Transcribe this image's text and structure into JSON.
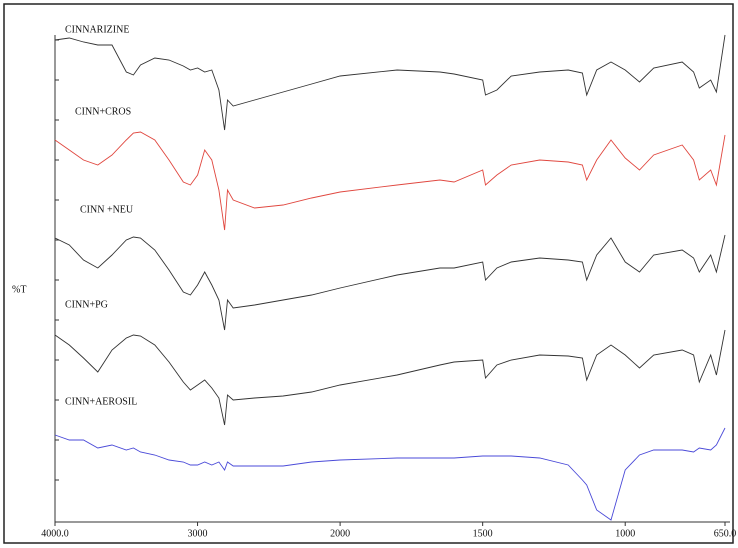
{
  "chart_data": {
    "type": "line",
    "ylabel": "%T",
    "x": [
      4000,
      3900,
      3800,
      3700,
      3600,
      3500,
      3450,
      3400,
      3300,
      3200,
      3100,
      3050,
      3000,
      2950,
      2900,
      2850,
      2810,
      2790,
      2750,
      2600,
      2400,
      2200,
      2000,
      1800,
      1650,
      1600,
      1500,
      1490,
      1450,
      1400,
      1300,
      1200,
      1150,
      1135,
      1100,
      1050,
      1000,
      950,
      900,
      800,
      760,
      740,
      700,
      680,
      650
    ],
    "xlim": [
      4000,
      650
    ],
    "x_scale_break": 2000,
    "xticks": [
      {
        "value": 4000,
        "label": "4000.0"
      },
      3000,
      2000,
      1500,
      1000,
      {
        "value": 650,
        "label": "650.0"
      }
    ],
    "ylim": [
      0,
      510
    ],
    "series": [
      {
        "name": "CINNARIZINE",
        "color": "#333333",
        "values": [
          480,
          482,
          478,
          475,
          475,
          448,
          445,
          455,
          462,
          460,
          454,
          450,
          452,
          448,
          450,
          430,
          390,
          420,
          414,
          420,
          428,
          436,
          444,
          450,
          448,
          446,
          440,
          425,
          430,
          444,
          448,
          450,
          447,
          425,
          450,
          458,
          450,
          438,
          452,
          458,
          448,
          432,
          440,
          428,
          485
        ]
      },
      {
        "name": "CINN+CROS",
        "color": "#e0473f",
        "values": [
          380,
          370,
          360,
          355,
          365,
          380,
          387,
          388,
          380,
          360,
          338,
          335,
          345,
          370,
          360,
          330,
          290,
          330,
          320,
          312,
          315,
          322,
          328,
          335,
          340,
          338,
          350,
          335,
          345,
          355,
          360,
          358,
          355,
          340,
          360,
          380,
          362,
          350,
          365,
          375,
          360,
          340,
          350,
          335,
          385
        ]
      },
      {
        "name": "CINN +NEU",
        "color": "#333333",
        "values": [
          282,
          275,
          260,
          252,
          265,
          280,
          283,
          282,
          270,
          250,
          228,
          225,
          235,
          248,
          235,
          220,
          190,
          220,
          212,
          215,
          220,
          225,
          232,
          245,
          252,
          252,
          258,
          240,
          252,
          258,
          262,
          260,
          258,
          240,
          265,
          282,
          258,
          248,
          265,
          270,
          262,
          248,
          265,
          248,
          285
        ]
      },
      {
        "name": "CINN+PG",
        "color": "#333333",
        "values": [
          185,
          175,
          162,
          148,
          170,
          182,
          185,
          184,
          175,
          158,
          138,
          130,
          135,
          140,
          132,
          122,
          95,
          125,
          120,
          122,
          124,
          128,
          135,
          145,
          155,
          158,
          160,
          142,
          155,
          160,
          165,
          164,
          162,
          140,
          165,
          175,
          165,
          152,
          165,
          170,
          165,
          138,
          165,
          145,
          190
        ]
      },
      {
        "name": "CINN+AEROSIL",
        "color": "#4a4ad8",
        "values": [
          85,
          80,
          80,
          72,
          75,
          70,
          72,
          68,
          65,
          60,
          58,
          55,
          55,
          58,
          55,
          58,
          50,
          58,
          54,
          54,
          54,
          58,
          60,
          62,
          62,
          62,
          64,
          64,
          64,
          64,
          62,
          55,
          40,
          35,
          10,
          0,
          50,
          65,
          70,
          70,
          68,
          72,
          70,
          75,
          92
        ]
      }
    ]
  }
}
